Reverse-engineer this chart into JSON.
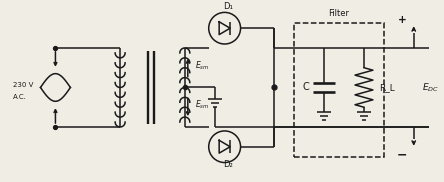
{
  "bg_color": "#f0ede5",
  "line_color": "#1a1a1a",
  "lw": 1.1,
  "fig_w": 4.44,
  "fig_h": 1.82,
  "dpi": 100,
  "labels": {
    "ac_v1": "230 V",
    "ac_v2": "A.C.",
    "esm": "E_sm",
    "d1": "D₁",
    "d2": "D₂",
    "c_label": "C",
    "rl_label": "R_L",
    "edc_label": "E_DC",
    "filter_label": "Filter",
    "plus": "+",
    "minus": "−"
  },
  "xmax": 44.4,
  "ymax": 18.2
}
